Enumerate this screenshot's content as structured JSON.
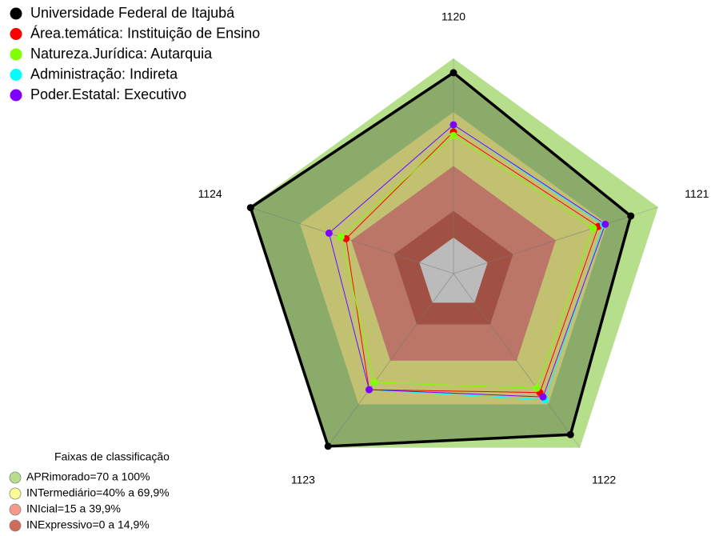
{
  "chart_data": {
    "type": "radar",
    "categories": [
      "1120",
      "1121",
      "1122",
      "1123",
      "1124"
    ],
    "ylim": [
      -20,
      100
    ],
    "grid": true,
    "legend": "top-left",
    "series": [
      {
        "name": "Universidade Federal de Itajubá",
        "color": "#000000",
        "values": [
          92,
          84,
          91,
          99,
          99
        ]
      },
      {
        "name": "Área.temática: Instituição de Ensino",
        "color": "#ff0000",
        "values": [
          59,
          65,
          62,
          60,
          43
        ]
      },
      {
        "name": "Natureza.Jurídica: Autarquia",
        "color": "#80ff00",
        "values": [
          57,
          62,
          59,
          55,
          46
        ]
      },
      {
        "name": "Administração: Indireta",
        "color": "#00ffff",
        "values": [
          63,
          68,
          67,
          60,
          53
        ]
      },
      {
        "name": "Poder.Estatal: Executivo",
        "color": "#8000ff",
        "values": [
          63,
          69,
          65,
          60,
          53
        ]
      }
    ],
    "bands_title": "Faixas de classificação",
    "bands": [
      {
        "label": "APRimorado=70 a 100%",
        "from": 70,
        "to": 100,
        "color": "#b5df8b"
      },
      {
        "label": "INTermediário=40% a 69,9%",
        "from": 40,
        "to": 70,
        "color": "#fcfc94"
      },
      {
        "label": "INIcial=15 a 39,9%",
        "from": 15,
        "to": 40,
        "color": "#f49a86"
      },
      {
        "label": "INExpressivo=0 a 14,9%",
        "from": 0,
        "to": 15,
        "color": "#d26a58"
      }
    ]
  }
}
